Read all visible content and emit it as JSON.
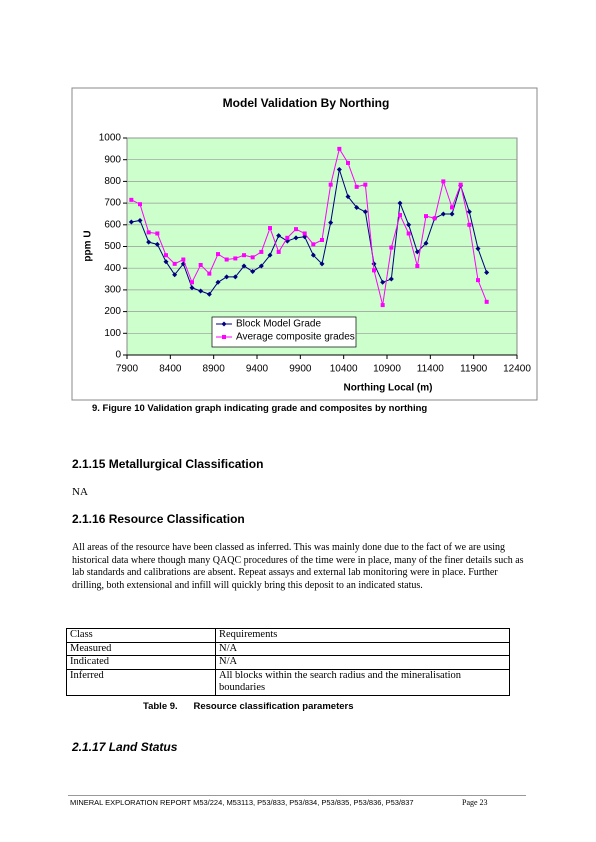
{
  "chart_data": {
    "type": "line",
    "title": "Model Validation By Northing",
    "xlabel": "Northing Local (m)",
    "ylabel": "ppm U",
    "x": [
      7950,
      8050,
      8150,
      8250,
      8350,
      8450,
      8550,
      8650,
      8750,
      8850,
      8950,
      9050,
      9150,
      9250,
      9350,
      9450,
      9550,
      9650,
      9750,
      9850,
      9950,
      10050,
      10150,
      10250,
      10350,
      10450,
      10550,
      10650,
      10750,
      10850,
      10950,
      11050,
      11150,
      11250,
      11350,
      11450,
      11550,
      11650,
      11750,
      11850,
      11950,
      12050
    ],
    "series": [
      {
        "name": "Block Model Grade",
        "color": "#000080",
        "marker": "diamond",
        "values": [
          613,
          620,
          520,
          510,
          430,
          370,
          420,
          310,
          295,
          280,
          335,
          360,
          360,
          410,
          385,
          410,
          460,
          550,
          525,
          540,
          545,
          460,
          420,
          610,
          855,
          730,
          680,
          660,
          420,
          335,
          350,
          700,
          600,
          475,
          515,
          630,
          650,
          650,
          780,
          660,
          490,
          380
        ]
      },
      {
        "name": "Average composite grades",
        "color": "#ff00ff",
        "marker": "square",
        "values": [
          715,
          695,
          565,
          560,
          460,
          420,
          440,
          335,
          415,
          375,
          465,
          440,
          445,
          460,
          450,
          475,
          585,
          475,
          540,
          580,
          560,
          510,
          530,
          785,
          950,
          885,
          775,
          785,
          390,
          230,
          495,
          645,
          560,
          410,
          640,
          630,
          800,
          680,
          785,
          600,
          345,
          245
        ]
      }
    ],
    "xlim": [
      7900,
      12400
    ],
    "xticks": [
      7900,
      8400,
      8900,
      9400,
      9900,
      10400,
      10900,
      11400,
      11900,
      12400
    ],
    "ylim": [
      0,
      1000
    ],
    "yticks": [
      0,
      100,
      200,
      300,
      400,
      500,
      600,
      700,
      800,
      900,
      1000
    ],
    "grid": true,
    "legend": "lower center",
    "plot_background": "#ccffcc"
  },
  "figure_caption": "9.   Figure 10 Validation graph indicating grade and composites by northing",
  "sections": [
    {
      "heading": "2.1.15 Metallurgical Classification",
      "paragraph": "NA"
    },
    {
      "heading": "2.1.16 Resource Classification",
      "paragraph": "All areas of the resource have been classed as inferred. This was mainly done due to the fact of we are using historical data where though many QAQC procedures of the time were in place, many of the finer details such as lab standards and calibrations are absent. Repeat assays and external lab monitoring were in place.  Further drilling, both extensional and infill will quickly bring this deposit to an indicated status."
    }
  ],
  "table": {
    "header": [
      "Class",
      "Requirements"
    ],
    "rows": [
      [
        "Measured",
        "N/A"
      ],
      [
        "Indicated",
        "N/A"
      ],
      [
        "Inferred",
        "All blocks within the search radius and the mineralisation boundaries"
      ]
    ],
    "caption": "Table 9.      Resource classification parameters"
  },
  "land_heading": "2.1.17 Land Status",
  "footer": {
    "text": "MINERAL EXPLORATION REPORT M53/224, M53113, P53/833, P53/834, P53/835, P53/836, P53/837",
    "page": "Page 23"
  }
}
